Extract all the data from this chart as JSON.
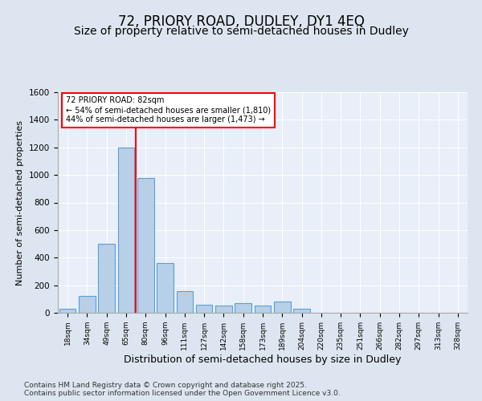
{
  "title1": "72, PRIORY ROAD, DUDLEY, DY1 4EQ",
  "title2": "Size of property relative to semi-detached houses in Dudley",
  "xlabel": "Distribution of semi-detached houses by size in Dudley",
  "ylabel": "Number of semi-detached properties",
  "categories": [
    "18sqm",
    "34sqm",
    "49sqm",
    "65sqm",
    "80sqm",
    "96sqm",
    "111sqm",
    "127sqm",
    "142sqm",
    "158sqm",
    "173sqm",
    "189sqm",
    "204sqm",
    "220sqm",
    "235sqm",
    "251sqm",
    "266sqm",
    "282sqm",
    "297sqm",
    "313sqm",
    "328sqm"
  ],
  "values": [
    30,
    120,
    500,
    1200,
    980,
    360,
    155,
    60,
    50,
    70,
    55,
    80,
    30,
    0,
    0,
    0,
    0,
    0,
    0,
    0,
    0
  ],
  "bar_color": "#b8cfe8",
  "bar_edge_color": "#5a9fd4",
  "vline_color": "red",
  "vline_pos": 4.5,
  "annotation_text": "72 PRIORY ROAD: 82sqm\n← 54% of semi-detached houses are smaller (1,810)\n44% of semi-detached houses are larger (1,473) →",
  "annotation_box_color": "white",
  "annotation_box_edge": "red",
  "ylim": [
    0,
    1600
  ],
  "yticks": [
    0,
    200,
    400,
    600,
    800,
    1000,
    1200,
    1400,
    1600
  ],
  "footnote": "Contains HM Land Registry data © Crown copyright and database right 2025.\nContains public sector information licensed under the Open Government Licence v3.0.",
  "bg_color": "#dde6f0",
  "plot_bg_color": "#e8eff8",
  "title1_fontsize": 12,
  "title2_fontsize": 10,
  "xlabel_fontsize": 9,
  "ylabel_fontsize": 8,
  "footnote_fontsize": 6.5
}
